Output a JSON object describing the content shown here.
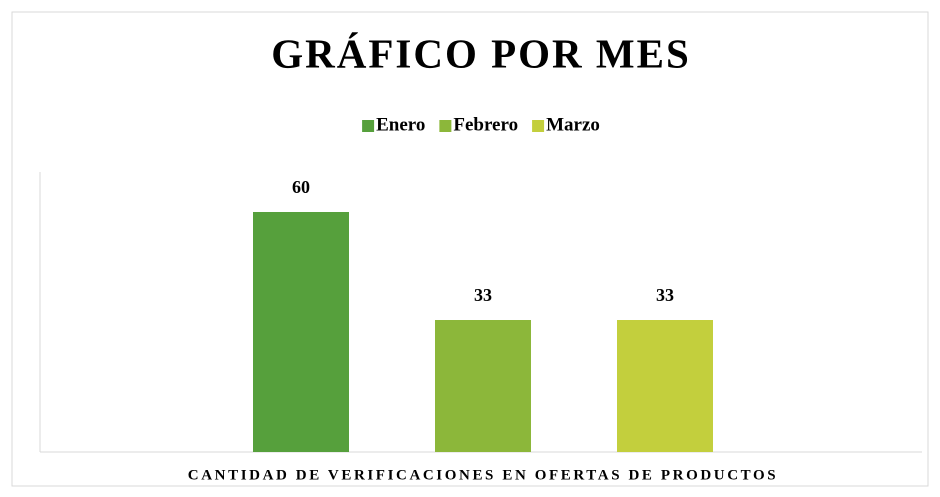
{
  "chart_data": {
    "type": "bar",
    "title": "GRÁFICO POR MES",
    "categories": [
      "CANTIDAD DE VERIFICACIONES EN OFERTAS DE PRODUCTOS"
    ],
    "series": [
      {
        "name": "Enero",
        "color": "#56a03c",
        "values": [
          60
        ]
      },
      {
        "name": "Febrero",
        "color": "#8cb73a",
        "values": [
          33
        ]
      },
      {
        "name": "Marzo",
        "color": "#c3cf3d",
        "values": [
          33
        ]
      }
    ],
    "ylim": [
      0,
      70
    ],
    "legend": "top"
  }
}
